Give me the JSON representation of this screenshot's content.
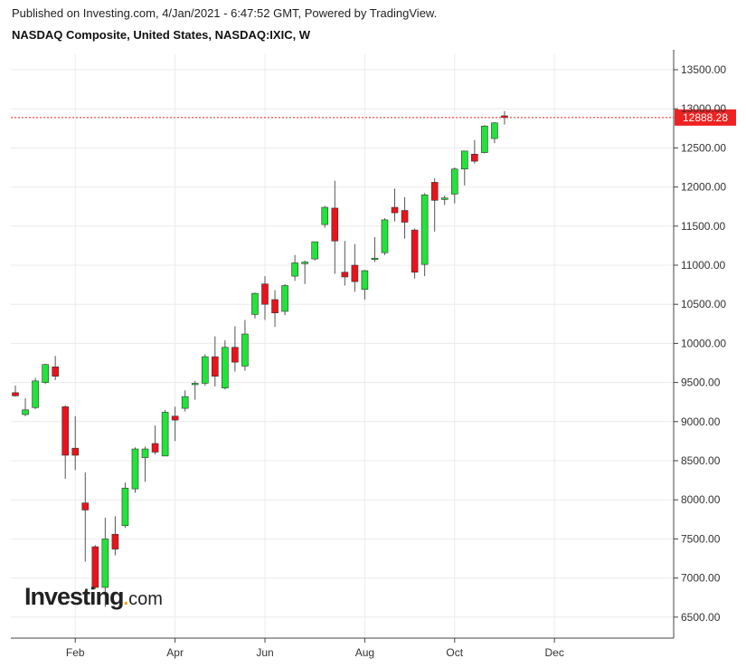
{
  "header": {
    "published": "Published on Investing.com, 4/Jan/2021 - 6:47:52 GMT, Powered by TradingView.",
    "title": "NASDAQ Composite, United States, NASDAQ:IXIC, W"
  },
  "logo": {
    "brand": "Investing",
    "dot": ".",
    "suffix": "com"
  },
  "colors": {
    "up": "#22e33a",
    "down": "#e8141c",
    "wick": "#555555",
    "last_price": "#ee2222",
    "grid": "#ececec",
    "axis": "#444444"
  },
  "chart_data": {
    "type": "candlestick",
    "interval": "W",
    "ylim": [
      6300,
      13800
    ],
    "y_ticks": [
      "6500.00",
      "7000.00",
      "7500.00",
      "8000.00",
      "8500.00",
      "9000.00",
      "9500.00",
      "10000.00",
      "10500.00",
      "11000.00",
      "11500.00",
      "12000.00",
      "12500.00",
      "13000.00",
      "13500.00"
    ],
    "x_tick_labels": [
      "Feb",
      "Apr",
      "Jun",
      "Aug",
      "Oct",
      "Dec"
    ],
    "x_tick_index": [
      6,
      16,
      25,
      35,
      44,
      54
    ],
    "last_price": 12888.28,
    "last_price_label": "12888.28",
    "grid": true,
    "candles": [
      {
        "o": 9370,
        "h": 9460,
        "l": 9320,
        "c": 9330
      },
      {
        "o": 9090,
        "h": 9300,
        "l": 9070,
        "c": 9150
      },
      {
        "o": 9180,
        "h": 9560,
        "l": 9160,
        "c": 9520
      },
      {
        "o": 9500,
        "h": 9740,
        "l": 9480,
        "c": 9730
      },
      {
        "o": 9700,
        "h": 9840,
        "l": 9530,
        "c": 9580
      },
      {
        "o": 9190,
        "h": 9210,
        "l": 8270,
        "c": 8570
      },
      {
        "o": 8660,
        "h": 9070,
        "l": 8380,
        "c": 8570
      },
      {
        "o": 7960,
        "h": 8350,
        "l": 7210,
        "c": 7870
      },
      {
        "o": 7400,
        "h": 7420,
        "l": 6860,
        "c": 6880
      },
      {
        "o": 6880,
        "h": 7770,
        "l": 6630,
        "c": 7500
      },
      {
        "o": 7560,
        "h": 7790,
        "l": 7290,
        "c": 7370
      },
      {
        "o": 7670,
        "h": 8220,
        "l": 7640,
        "c": 8150
      },
      {
        "o": 8140,
        "h": 8670,
        "l": 8090,
        "c": 8650
      },
      {
        "o": 8540,
        "h": 8680,
        "l": 8230,
        "c": 8650
      },
      {
        "o": 8720,
        "h": 8950,
        "l": 8580,
        "c": 8610
      },
      {
        "o": 8560,
        "h": 9150,
        "l": 8560,
        "c": 9120
      },
      {
        "o": 9070,
        "h": 9190,
        "l": 8750,
        "c": 9020
      },
      {
        "o": 9170,
        "h": 9400,
        "l": 9130,
        "c": 9320
      },
      {
        "o": 9490,
        "h": 9520,
        "l": 9280,
        "c": 9490
      },
      {
        "o": 9490,
        "h": 9860,
        "l": 9460,
        "c": 9830
      },
      {
        "o": 9830,
        "h": 10090,
        "l": 9450,
        "c": 9580
      },
      {
        "o": 9430,
        "h": 10040,
        "l": 9410,
        "c": 9950
      },
      {
        "o": 9950,
        "h": 10220,
        "l": 9640,
        "c": 9760
      },
      {
        "o": 9710,
        "h": 10300,
        "l": 9650,
        "c": 10120
      },
      {
        "o": 10370,
        "h": 10650,
        "l": 10320,
        "c": 10640
      },
      {
        "o": 10760,
        "h": 10860,
        "l": 10300,
        "c": 10500
      },
      {
        "o": 10560,
        "h": 10680,
        "l": 10210,
        "c": 10390
      },
      {
        "o": 10410,
        "h": 10760,
        "l": 10360,
        "c": 10740
      },
      {
        "o": 10860,
        "h": 11130,
        "l": 10800,
        "c": 11030
      },
      {
        "o": 11020,
        "h": 11060,
        "l": 10760,
        "c": 11040
      },
      {
        "o": 11080,
        "h": 11300,
        "l": 11060,
        "c": 11300
      },
      {
        "o": 11520,
        "h": 11760,
        "l": 11480,
        "c": 11740
      },
      {
        "o": 11730,
        "h": 12080,
        "l": 10890,
        "c": 11310
      },
      {
        "o": 10910,
        "h": 11310,
        "l": 10740,
        "c": 10850
      },
      {
        "o": 11000,
        "h": 11270,
        "l": 10660,
        "c": 10790
      },
      {
        "o": 10690,
        "h": 10940,
        "l": 10560,
        "c": 10930
      },
      {
        "o": 11080,
        "h": 11360,
        "l": 11040,
        "c": 11090
      },
      {
        "o": 11160,
        "h": 11600,
        "l": 11130,
        "c": 11580
      },
      {
        "o": 11740,
        "h": 11980,
        "l": 11560,
        "c": 11670
      },
      {
        "o": 11700,
        "h": 11870,
        "l": 11340,
        "c": 11550
      },
      {
        "o": 11450,
        "h": 11470,
        "l": 10830,
        "c": 10910
      },
      {
        "o": 11010,
        "h": 11920,
        "l": 10860,
        "c": 11900
      },
      {
        "o": 12060,
        "h": 12110,
        "l": 11430,
        "c": 11830
      },
      {
        "o": 11840,
        "h": 11890,
        "l": 11770,
        "c": 11860
      },
      {
        "o": 11910,
        "h": 12250,
        "l": 11790,
        "c": 12230
      },
      {
        "o": 12230,
        "h": 12460,
        "l": 12020,
        "c": 12460
      },
      {
        "o": 12420,
        "h": 12600,
        "l": 12300,
        "c": 12330
      },
      {
        "o": 12440,
        "h": 12790,
        "l": 12430,
        "c": 12780
      },
      {
        "o": 12620,
        "h": 12830,
        "l": 12560,
        "c": 12820
      },
      {
        "o": 12910,
        "h": 12970,
        "l": 12800,
        "c": 12888
      }
    ]
  }
}
